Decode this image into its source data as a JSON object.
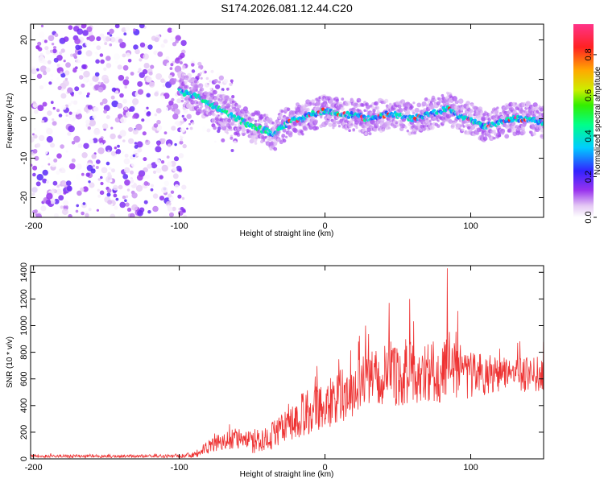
{
  "figure_title": "S174.2026.081.12.44.C20",
  "chart_data": [
    {
      "type": "heatmap",
      "name": "spectrogram",
      "xlabel": "Height of straight line (km)",
      "ylabel": "Frequency (Hz)",
      "xlim": [
        -202,
        150
      ],
      "ylim": [
        -25,
        24
      ],
      "x_ticks": [
        -200,
        -100,
        0,
        100
      ],
      "y_ticks": [
        -20,
        -10,
        0,
        10,
        20
      ],
      "trace": {
        "x": [
          -100,
          -90,
          -80,
          -70,
          -60,
          -50,
          -40,
          -35,
          -30,
          -20,
          -15,
          -10,
          0,
          10,
          20,
          30,
          40,
          50,
          60,
          70,
          80,
          85,
          90,
          100,
          110,
          120,
          130,
          140,
          150
        ],
        "freq": [
          7,
          6,
          4,
          2,
          0,
          -2,
          -3,
          -4,
          -2,
          0,
          0,
          1,
          2,
          1,
          1,
          0,
          1,
          1,
          0,
          1,
          2,
          3,
          1,
          0,
          -2,
          -1,
          0,
          0,
          -1
        ]
      },
      "colorbar": {
        "label": "Normalized spectral amplitude",
        "range": [
          0,
          0.95
        ],
        "ticks": [
          0,
          0.2,
          0.4,
          0.6,
          0.8
        ],
        "tick_labels": [
          "0.0",
          "0.2",
          "0.4",
          "0.6",
          "0.8"
        ]
      }
    },
    {
      "type": "line",
      "name": "snr",
      "xlabel": "Height of straight line (km)",
      "ylabel": "SNR (10 * v/v)",
      "xlim": [
        -202,
        150
      ],
      "ylim": [
        0,
        1450
      ],
      "x_ticks": [
        -200,
        -100,
        0,
        100
      ],
      "y_ticks": [
        0,
        200,
        400,
        600,
        800,
        1000,
        1200,
        1400
      ],
      "color": "#ee3333",
      "envelope": {
        "x": [
          -202,
          -100,
          -90,
          -80,
          -70,
          -60,
          -55,
          -50,
          -45,
          -40,
          -35,
          -30,
          -25,
          -20,
          -10,
          0,
          10,
          20,
          30,
          40,
          50,
          60,
          70,
          80,
          85,
          90,
          100,
          110,
          120,
          130,
          140,
          150
        ],
        "mean": [
          20,
          20,
          30,
          90,
          140,
          150,
          150,
          120,
          140,
          130,
          180,
          230,
          270,
          300,
          360,
          400,
          470,
          540,
          590,
          630,
          650,
          660,
          650,
          650,
          700,
          640,
          640,
          630,
          630,
          630,
          630,
          640
        ],
        "spread": [
          12,
          12,
          25,
          50,
          70,
          80,
          80,
          80,
          90,
          100,
          110,
          130,
          150,
          160,
          170,
          180,
          200,
          220,
          230,
          240,
          250,
          250,
          240,
          240,
          260,
          230,
          180,
          150,
          140,
          130,
          130,
          130
        ]
      },
      "peaks": [
        {
          "x": 84,
          "y": 1430
        },
        {
          "x": 58,
          "y": 1200
        },
        {
          "x": 44,
          "y": 1170
        },
        {
          "x": 91,
          "y": 1110
        }
      ]
    }
  ]
}
